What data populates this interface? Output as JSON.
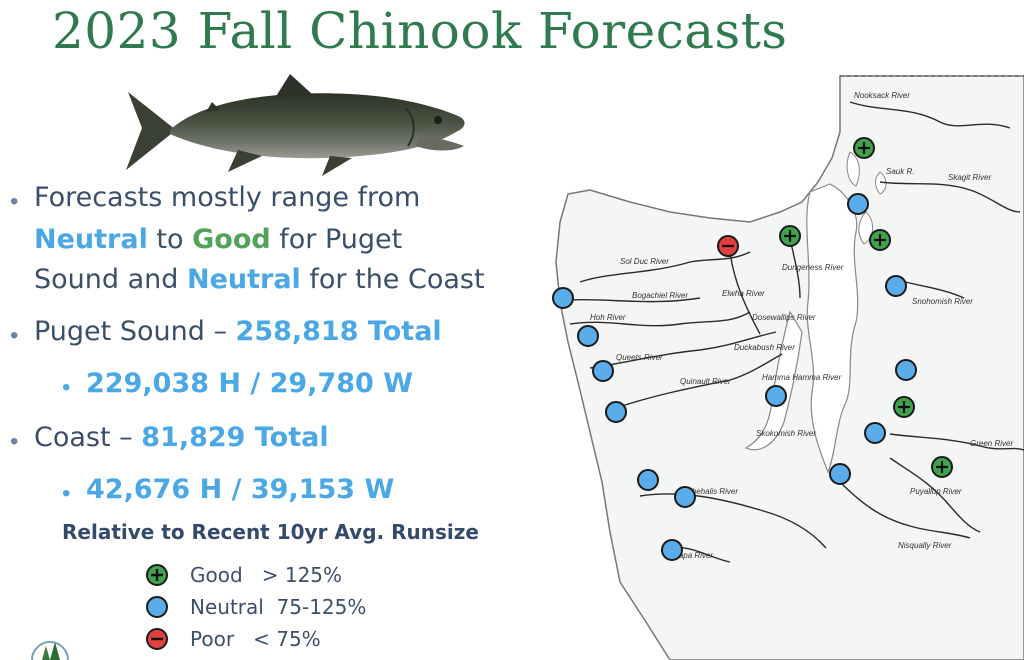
{
  "title": "2023 Fall Chinook Forecasts",
  "bullets": {
    "b1_line1": "Forecasts mostly range from",
    "b1_neutral": "Neutral",
    "b1_to": " to ",
    "b1_good": "Good",
    "b1_for_puget": " for Puget",
    "b1_line3_a": "Sound and ",
    "b1_line3_neutral": "Neutral",
    "b1_line3_b": " for the Coast",
    "b2_label": "Puget Sound – ",
    "b2_total": "258,818 Total",
    "b2_sub": "229,038 H / 29,780 W",
    "b3_label": "Coast – ",
    "b3_total": "81,829 Total",
    "b3_sub": "42,676 H /  39,153 W"
  },
  "legend": {
    "heading": "Relative to Recent 10yr Avg. Runsize",
    "items": [
      {
        "status": "good",
        "symbol": "+",
        "text": "Good   > 125%",
        "color": "#3fa34d"
      },
      {
        "status": "neutral",
        "symbol": "",
        "text": "Neutral  75-125%",
        "color": "#5aacea"
      },
      {
        "status": "poor",
        "symbol": "−",
        "text": "Poor   < 75%",
        "color": "#e0403e"
      }
    ]
  },
  "map": {
    "rivers": [
      "Nooksack River",
      "Skagit River",
      "Sauk R.",
      "Sol Duc River",
      "Bogachiel River",
      "Hoh River",
      "Queets River",
      "Quinault River",
      "Elwha River",
      "Dungeness River",
      "Dosewallips River",
      "Duckabush River",
      "Hamma Hamma River",
      "Skokomish River",
      "Snohomish River",
      "Green River",
      "Puyallup River",
      "Nisqually River",
      "Chehalis River",
      "Willapa River"
    ],
    "marker_statuses": [
      "good",
      "neutral",
      "good",
      "poor",
      "good",
      "neutral",
      "neutral",
      "neutral",
      "neutral",
      "neutral",
      "neutral",
      "good",
      "neutral",
      "neutral",
      "neutral",
      "good",
      "neutral",
      "neutral",
      "neutral"
    ]
  }
}
